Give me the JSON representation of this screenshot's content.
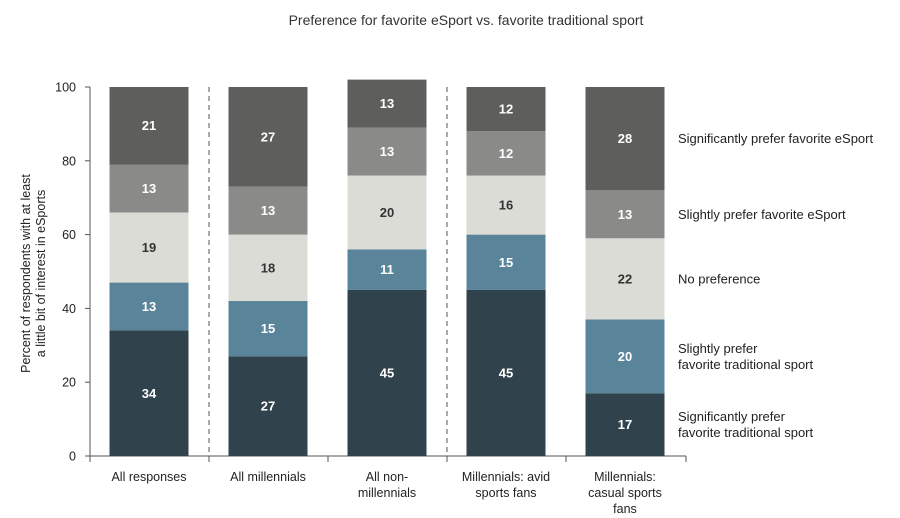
{
  "chart_data": {
    "type": "bar",
    "stacked": true,
    "title": "Preference for favorite eSport vs. favorite traditional sport",
    "ylabel": [
      "Percent of respondents with at least",
      "a little bit of interest in eSports"
    ],
    "ylim": [
      0,
      100
    ],
    "yticks": [
      0,
      20,
      40,
      60,
      80,
      100
    ],
    "categories": [
      [
        "All responses"
      ],
      [
        "All millennials"
      ],
      [
        "All non-",
        "millennials"
      ],
      [
        "Millennials: avid",
        "sports fans"
      ],
      [
        "Millennials:",
        "casual sports",
        "fans"
      ]
    ],
    "dividers_after_category": [
      0,
      2
    ],
    "series": [
      {
        "name": [
          "Significantly prefer",
          "favorite traditional sport"
        ],
        "values": [
          34,
          27,
          45,
          45,
          17
        ],
        "color": "#30434d",
        "label_color": "#ffffff"
      },
      {
        "name": [
          "Slightly prefer",
          "favorite traditional sport"
        ],
        "values": [
          13,
          15,
          11,
          15,
          20
        ],
        "color": "#5a8499",
        "label_color": "#ffffff"
      },
      {
        "name": [
          "No preference"
        ],
        "values": [
          19,
          18,
          20,
          16,
          22
        ],
        "color": "#dcdcd7",
        "label_color": "#333333"
      },
      {
        "name": [
          "Slightly prefer favorite eSport"
        ],
        "values": [
          13,
          13,
          13,
          12,
          13
        ],
        "color": "#8a8b89",
        "label_color": "#ffffff"
      },
      {
        "name": [
          "Significantly prefer favorite eSport"
        ],
        "values": [
          21,
          27,
          13,
          12,
          28
        ],
        "color": "#5e5f5c",
        "label_color": "#ffffff"
      }
    ],
    "legend_position": "right"
  }
}
